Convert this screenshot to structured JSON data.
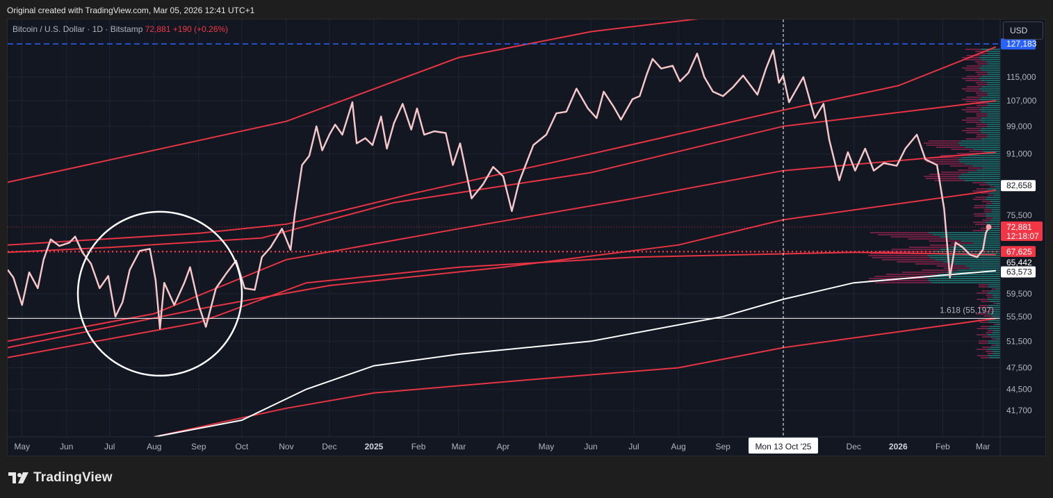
{
  "header": {
    "note": "Original created with TradingView.com, Mar 05, 2026 12:41 UTC+1"
  },
  "legend": {
    "symbol": "Bitcoin / U.S. Dollar · 1D · Bitstamp",
    "last_price": "72,881",
    "change": "+190 (+0.26%)"
  },
  "currency_button": {
    "label": "USD"
  },
  "brand": {
    "name": "TradingView"
  },
  "colors": {
    "price_line": "#f6c7c9",
    "bands": "#f23645",
    "base_band": "#ffffff",
    "blue_level": "#2962ff",
    "volume_profile_up": "#26a69a",
    "volume_profile_down": "#8e244d"
  },
  "chart_data": {
    "type": "line",
    "title": "Bitcoin / U.S. Dollar · 1D · Bitstamp",
    "x_range": [
      "2024-04-21",
      "2026-03-13"
    ],
    "y_scale": "log",
    "y_range": [
      38500,
      137000
    ],
    "y_ticks": [
      127183,
      115000,
      107000,
      99000,
      91000,
      82658,
      75500,
      72881,
      67625,
      65442,
      63573,
      59500,
      55500,
      51500,
      47500,
      44500,
      41700
    ],
    "y_tick_labels": [
      {
        "value": 115000,
        "label": "115,000"
      },
      {
        "value": 107000,
        "label": "107,000"
      },
      {
        "value": 99000,
        "label": "99,000"
      },
      {
        "value": 91000,
        "label": "91,000"
      },
      {
        "value": 75500,
        "label": "75,500"
      },
      {
        "value": 59500,
        "label": "59,500"
      },
      {
        "value": 55500,
        "label": "55,500"
      },
      {
        "value": 51500,
        "label": "51,500"
      },
      {
        "value": 47500,
        "label": "47,500"
      },
      {
        "value": 44500,
        "label": "44,500"
      },
      {
        "value": 41700,
        "label": "41,700"
      }
    ],
    "x_ticks": [
      {
        "date": "2024-05-01",
        "label": "May",
        "bold": false
      },
      {
        "date": "2024-06-01",
        "label": "Jun",
        "bold": false
      },
      {
        "date": "2024-07-01",
        "label": "Jul",
        "bold": false
      },
      {
        "date": "2024-08-01",
        "label": "Aug",
        "bold": false
      },
      {
        "date": "2024-09-01",
        "label": "Sep",
        "bold": false
      },
      {
        "date": "2024-10-01",
        "label": "Oct",
        "bold": false
      },
      {
        "date": "2024-11-01",
        "label": "Nov",
        "bold": false
      },
      {
        "date": "2024-12-01",
        "label": "Dec",
        "bold": false
      },
      {
        "date": "2025-01-01",
        "label": "2025",
        "bold": true
      },
      {
        "date": "2025-02-01",
        "label": "Feb",
        "bold": false
      },
      {
        "date": "2025-03-01",
        "label": "Mar",
        "bold": false
      },
      {
        "date": "2025-04-01",
        "label": "Apr",
        "bold": false
      },
      {
        "date": "2025-05-01",
        "label": "May",
        "bold": false
      },
      {
        "date": "2025-06-01",
        "label": "Jun",
        "bold": false
      },
      {
        "date": "2025-07-01",
        "label": "Jul",
        "bold": false
      },
      {
        "date": "2025-08-01",
        "label": "Aug",
        "bold": false
      },
      {
        "date": "2025-09-01",
        "label": "Sep",
        "bold": false
      },
      {
        "date": "2025-12-01",
        "label": "Dec",
        "bold": false
      },
      {
        "date": "2026-01-01",
        "label": "2026",
        "bold": true
      },
      {
        "date": "2026-02-01",
        "label": "Feb",
        "bold": false
      },
      {
        "date": "2026-03-01",
        "label": "Mar",
        "bold": false
      }
    ],
    "crosshair": {
      "date": "2025-10-13",
      "label": "Mon 13 Oct '25"
    },
    "price_series": {
      "name": "",
      "points": [
        [
          "2024-04-21",
          64000
        ],
        [
          "2024-04-25",
          62500
        ],
        [
          "2024-05-01",
          57500
        ],
        [
          "2024-05-06",
          63500
        ],
        [
          "2024-05-12",
          60500
        ],
        [
          "2024-05-16",
          66000
        ],
        [
          "2024-05-21",
          70200
        ],
        [
          "2024-05-27",
          68800
        ],
        [
          "2024-06-03",
          69500
        ],
        [
          "2024-06-07",
          70800
        ],
        [
          "2024-06-12",
          67500
        ],
        [
          "2024-06-18",
          65200
        ],
        [
          "2024-06-24",
          60500
        ],
        [
          "2024-06-30",
          62800
        ],
        [
          "2024-07-05",
          55500
        ],
        [
          "2024-07-10",
          58000
        ],
        [
          "2024-07-15",
          64000
        ],
        [
          "2024-07-22",
          67800
        ],
        [
          "2024-07-29",
          68200
        ],
        [
          "2024-08-02",
          62000
        ],
        [
          "2024-08-05",
          53500
        ],
        [
          "2024-08-08",
          61500
        ],
        [
          "2024-08-15",
          57500
        ],
        [
          "2024-08-22",
          61500
        ],
        [
          "2024-08-26",
          64500
        ],
        [
          "2024-09-01",
          57500
        ],
        [
          "2024-09-06",
          53800
        ],
        [
          "2024-09-13",
          60500
        ],
        [
          "2024-09-20",
          63200
        ],
        [
          "2024-09-27",
          65800
        ],
        [
          "2024-10-03",
          60500
        ],
        [
          "2024-10-10",
          60200
        ],
        [
          "2024-10-15",
          66500
        ],
        [
          "2024-10-21",
          68500
        ],
        [
          "2024-10-29",
          72500
        ],
        [
          "2024-11-04",
          68000
        ],
        [
          "2024-11-07",
          76000
        ],
        [
          "2024-11-12",
          88000
        ],
        [
          "2024-11-17",
          90500
        ],
        [
          "2024-11-22",
          99000
        ],
        [
          "2024-11-26",
          92000
        ],
        [
          "2024-12-01",
          96500
        ],
        [
          "2024-12-05",
          99500
        ],
        [
          "2024-12-10",
          96500
        ],
        [
          "2024-12-17",
          106500
        ],
        [
          "2024-12-20",
          94000
        ],
        [
          "2024-12-26",
          95500
        ],
        [
          "2024-12-31",
          93500
        ],
        [
          "2025-01-06",
          102000
        ],
        [
          "2025-01-10",
          92500
        ],
        [
          "2025-01-15",
          100000
        ],
        [
          "2025-01-21",
          106000
        ],
        [
          "2025-01-27",
          98000
        ],
        [
          "2025-01-31",
          104500
        ],
        [
          "2025-02-05",
          96500
        ],
        [
          "2025-02-12",
          97500
        ],
        [
          "2025-02-20",
          97000
        ],
        [
          "2025-02-25",
          88000
        ],
        [
          "2025-03-02",
          94000
        ],
        [
          "2025-03-10",
          79500
        ],
        [
          "2025-03-18",
          83000
        ],
        [
          "2025-03-25",
          87500
        ],
        [
          "2025-04-01",
          85000
        ],
        [
          "2025-04-07",
          76500
        ],
        [
          "2025-04-12",
          83500
        ],
        [
          "2025-04-22",
          93500
        ],
        [
          "2025-05-01",
          96500
        ],
        [
          "2025-05-08",
          103000
        ],
        [
          "2025-05-15",
          103500
        ],
        [
          "2025-05-22",
          111000
        ],
        [
          "2025-05-30",
          104500
        ],
        [
          "2025-06-05",
          101500
        ],
        [
          "2025-06-10",
          110000
        ],
        [
          "2025-06-17",
          105000
        ],
        [
          "2025-06-22",
          101000
        ],
        [
          "2025-06-30",
          107500
        ],
        [
          "2025-07-05",
          108500
        ],
        [
          "2025-07-10",
          116000
        ],
        [
          "2025-07-14",
          121500
        ],
        [
          "2025-07-20",
          118000
        ],
        [
          "2025-07-28",
          119000
        ],
        [
          "2025-08-02",
          113500
        ],
        [
          "2025-08-08",
          116500
        ],
        [
          "2025-08-14",
          123500
        ],
        [
          "2025-08-19",
          115000
        ],
        [
          "2025-08-25",
          110000
        ],
        [
          "2025-09-01",
          108500
        ],
        [
          "2025-09-08",
          111500
        ],
        [
          "2025-09-15",
          115500
        ],
        [
          "2025-09-25",
          109000
        ],
        [
          "2025-10-01",
          118000
        ],
        [
          "2025-10-06",
          124800
        ],
        [
          "2025-10-10",
          113000
        ],
        [
          "2025-10-13",
          115500
        ],
        [
          "2025-10-17",
          106500
        ],
        [
          "2025-10-27",
          115000
        ],
        [
          "2025-11-04",
          101500
        ],
        [
          "2025-11-10",
          106000
        ],
        [
          "2025-11-14",
          95000
        ],
        [
          "2025-11-21",
          84000
        ],
        [
          "2025-11-27",
          91500
        ],
        [
          "2025-12-02",
          86500
        ],
        [
          "2025-12-09",
          92500
        ],
        [
          "2025-12-15",
          86500
        ],
        [
          "2025-12-22",
          88500
        ],
        [
          "2025-12-31",
          87800
        ],
        [
          "2026-01-06",
          92500
        ],
        [
          "2026-01-14",
          96500
        ],
        [
          "2026-01-20",
          89500
        ],
        [
          "2026-01-28",
          88000
        ],
        [
          "2026-02-02",
          77000
        ],
        [
          "2026-02-06",
          62500
        ],
        [
          "2026-02-10",
          69500
        ],
        [
          "2026-02-15",
          68500
        ],
        [
          "2026-02-20",
          67000
        ],
        [
          "2026-02-25",
          66500
        ],
        [
          "2026-03-01",
          68000
        ],
        [
          "2026-03-03",
          71500
        ],
        [
          "2026-03-05",
          72881
        ]
      ]
    },
    "bands": [
      {
        "name": "",
        "color": "#f23645",
        "points": [
          [
            "2024-04-21",
            83500
          ],
          [
            "2024-11-01",
            100500
          ],
          [
            "2025-03-01",
            122000
          ],
          [
            "2025-06-01",
            132000
          ],
          [
            "2025-09-01",
            138500
          ]
        ]
      },
      {
        "name": "",
        "color": "#f23645",
        "points": [
          [
            "2024-04-21",
            69000
          ],
          [
            "2024-09-01",
            71500
          ],
          [
            "2024-11-01",
            73500
          ],
          [
            "2025-02-01",
            81000
          ],
          [
            "2025-06-01",
            91000
          ],
          [
            "2025-10-13",
            104000
          ],
          [
            "2026-01-01",
            112000
          ],
          [
            "2026-03-10",
            126000
          ]
        ]
      },
      {
        "name": "",
        "color": "#f23645",
        "points": [
          [
            "2024-04-21",
            67500
          ],
          [
            "2024-07-01",
            68500
          ],
          [
            "2024-10-15",
            70500
          ],
          [
            "2025-01-15",
            78500
          ],
          [
            "2025-06-01",
            86000
          ],
          [
            "2025-10-13",
            99000
          ],
          [
            "2026-03-10",
            107000
          ]
        ]
      },
      {
        "name": "",
        "color": "#f23645",
        "points": [
          [
            "2024-04-21",
            51500
          ],
          [
            "2024-08-01",
            56000
          ],
          [
            "2024-11-01",
            66000
          ],
          [
            "2025-03-01",
            72500
          ],
          [
            "2025-07-01",
            79500
          ],
          [
            "2025-10-13",
            86500
          ],
          [
            "2026-03-10",
            91500
          ]
        ]
      },
      {
        "name": "",
        "color": "#f23645",
        "points": [
          [
            "2024-04-21",
            50500
          ],
          [
            "2024-09-01",
            56800
          ],
          [
            "2024-12-01",
            61000
          ],
          [
            "2025-04-01",
            64500
          ],
          [
            "2025-08-01",
            69000
          ],
          [
            "2025-10-13",
            74500
          ],
          [
            "2026-03-10",
            81500
          ]
        ]
      },
      {
        "name": "",
        "color": "#f23645",
        "points": [
          [
            "2024-04-21",
            49000
          ],
          [
            "2024-09-01",
            54500
          ],
          [
            "2024-11-15",
            61500
          ],
          [
            "2025-03-01",
            64500
          ],
          [
            "2025-07-01",
            66500
          ],
          [
            "2025-12-01",
            67500
          ],
          [
            "2026-03-10",
            67000
          ]
        ]
      },
      {
        "name": "",
        "color": "#f23645",
        "points": [
          [
            "2024-08-01",
            38500
          ],
          [
            "2024-11-01",
            42000
          ],
          [
            "2025-01-01",
            44000
          ],
          [
            "2025-05-01",
            46000
          ],
          [
            "2025-08-01",
            47500
          ],
          [
            "2025-10-13",
            50500
          ],
          [
            "2026-01-01",
            53000
          ],
          [
            "2026-03-10",
            55200
          ]
        ]
      },
      {
        "name": "",
        "color": "#ffffff",
        "points": [
          [
            "2024-08-01",
            38500
          ],
          [
            "2024-10-01",
            40500
          ],
          [
            "2024-11-15",
            44500
          ],
          [
            "2025-01-01",
            47800
          ],
          [
            "2025-03-01",
            49500
          ],
          [
            "2025-06-01",
            51500
          ],
          [
            "2025-09-01",
            55500
          ],
          [
            "2025-10-13",
            58500
          ],
          [
            "2025-12-01",
            61500
          ],
          [
            "2026-03-10",
            63800
          ]
        ]
      }
    ],
    "horizontal_levels": [
      {
        "value": 127183,
        "label": "127,183",
        "style": "dashed",
        "color": "#2962ff"
      },
      {
        "value": 67625,
        "label": "67,625",
        "style": "dotted",
        "color": "#f23645"
      },
      {
        "value": 72881,
        "label": "72,881",
        "style": "dotted-thin",
        "color": "#f23645"
      },
      {
        "value": 55197,
        "label": "1.618 (55,197)",
        "style": "solid",
        "color": "#ffffff"
      }
    ],
    "price_tags": [
      {
        "value": 127183,
        "label": "127,183",
        "bg": "#2962ff",
        "fg": "#ffffff"
      },
      {
        "value": 82658,
        "label": "82,658",
        "bg": "#ffffff",
        "fg": "#131722"
      },
      {
        "value": 72881,
        "label": "72,881",
        "sublabel": "12:18:07",
        "bg": "#f23645",
        "fg": "#ffffff"
      },
      {
        "value": 67625,
        "label": "67,625",
        "bg": "#f23645",
        "fg": "#ffffff"
      },
      {
        "value": 65442,
        "label": "65,442",
        "bg": "#131722",
        "fg": "#ffffff"
      },
      {
        "value": 63573,
        "label": "63,573",
        "bg": "#ffffff",
        "fg": "#131722"
      }
    ],
    "annotation_circle": {
      "center_date": "2024-08-05",
      "center_value": 59500
    },
    "grid": true
  }
}
